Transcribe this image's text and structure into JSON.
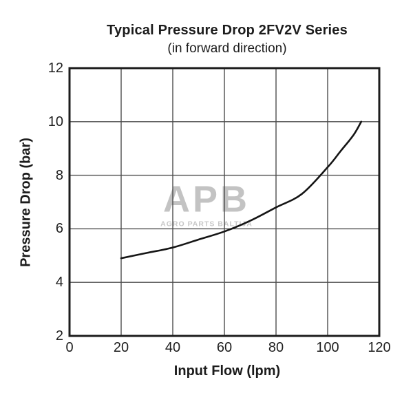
{
  "header": {
    "title": "Typical Pressure Drop 2FV2V Series",
    "subtitle": "(in forward direction)"
  },
  "watermark": {
    "logo": "APB",
    "caption": "AGRO PARTS BALTIJA"
  },
  "chart_data": {
    "type": "line",
    "title": "Typical Pressure Drop 2FV2V Series",
    "subtitle": "(in forward direction)",
    "xlabel": "Input Flow (lpm)",
    "ylabel": "Pressure Drop (bar)",
    "xlim": [
      0,
      120
    ],
    "ylim": [
      2,
      12
    ],
    "x_ticks": [
      0,
      20,
      40,
      60,
      80,
      100,
      120
    ],
    "y_ticks": [
      2,
      4,
      6,
      8,
      10,
      12
    ],
    "grid": true,
    "legend": false,
    "series": [
      {
        "name": "Pressure drop, forward direction",
        "x": [
          20,
          30,
          40,
          50,
          60,
          70,
          80,
          90,
          100,
          105,
          110,
          113
        ],
        "y": [
          4.9,
          5.1,
          5.3,
          5.6,
          5.9,
          6.3,
          6.8,
          7.3,
          8.3,
          8.9,
          9.5,
          10.0
        ]
      }
    ],
    "colors": {
      "curve": "#151515",
      "grid": "#4d4d4d",
      "border": "#1c1c1c",
      "text": "#1c1c1c",
      "watermark": "#c3c3c3",
      "background": "#ffffff"
    }
  }
}
